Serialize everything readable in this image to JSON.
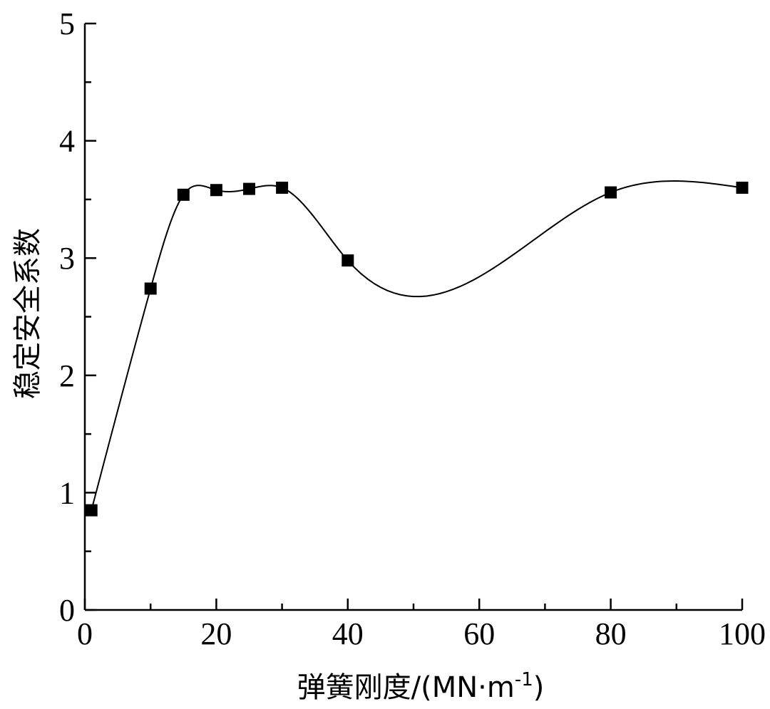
{
  "chart_data": {
    "type": "scatter",
    "x_label_text": "弹簧刚度/(MN·m",
    "x_label_sup": "-1",
    "x_label_close": ")",
    "y_label": "稳定安全系数",
    "xlim": [
      0,
      100
    ],
    "ylim": [
      0,
      5
    ],
    "x_ticks": [
      0,
      20,
      40,
      60,
      80,
      100
    ],
    "y_ticks": [
      0,
      1,
      2,
      3,
      4,
      5
    ],
    "x_minor_ticks": [
      10,
      30,
      50,
      70,
      90
    ],
    "y_minor_ticks": [
      0.5,
      1.5,
      2.5,
      3.5,
      4.5
    ],
    "grid": false,
    "series": [
      {
        "x": [
          1,
          10,
          15,
          20,
          25,
          30,
          40,
          80,
          100
        ],
        "y": [
          0.85,
          2.74,
          3.54,
          3.58,
          3.59,
          3.6,
          2.98,
          3.56,
          3.6
        ],
        "marker": "square",
        "color": "#000000",
        "smooth_line": true
      }
    ]
  }
}
